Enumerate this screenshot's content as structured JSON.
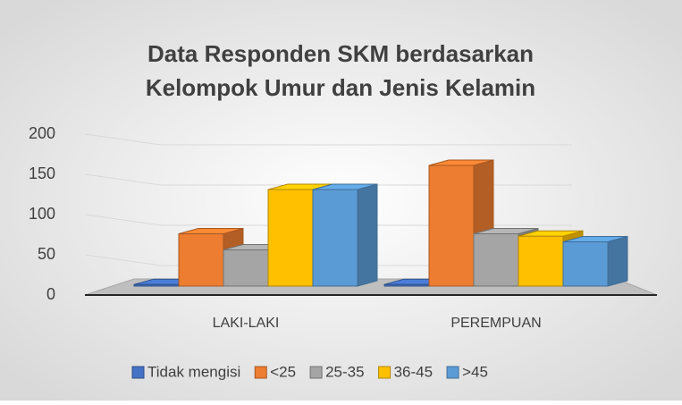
{
  "chart_data": {
    "type": "bar3d",
    "title": [
      "Data Responden SKM berdasarkan",
      "Kelompok Umur dan Jenis Kelamin"
    ],
    "categories": [
      "LAKI-LAKI",
      "PEREMPUAN"
    ],
    "series": [
      {
        "name": "Tidak mengisi",
        "color": "#4472c4",
        "values": [
          2,
          2
        ]
      },
      {
        "name": "<25",
        "color": "#ed7d31",
        "values": [
          65,
          150
        ]
      },
      {
        "name": "25-35",
        "color": "#a5a5a5",
        "values": [
          45,
          65
        ]
      },
      {
        "name": "36-45",
        "color": "#ffc000",
        "values": [
          120,
          62
        ]
      },
      {
        "name": ">45",
        "color": "#5b9bd5",
        "values": [
          120,
          55
        ]
      }
    ],
    "ylim": [
      0,
      200
    ],
    "yticks": [
      0,
      50,
      100,
      150,
      200
    ],
    "grid": true,
    "legend": "bottom"
  }
}
